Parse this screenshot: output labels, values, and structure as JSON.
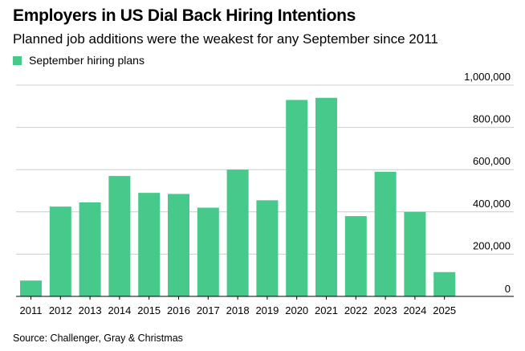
{
  "title": "Employers in US Dial Back Hiring Intentions",
  "subtitle": "Planned job additions were the weakest for any September since 2011",
  "source": "Source: Challenger, Gray & Christmas",
  "colors": {
    "bar": "#46c98a",
    "grid": "#cccccc",
    "baseline": "#000000"
  },
  "chart_data": {
    "type": "bar",
    "categories": [
      "2011",
      "2012",
      "2013",
      "2014",
      "2015",
      "2016",
      "2017",
      "2018",
      "2019",
      "2020",
      "2021",
      "2022",
      "2023",
      "2024",
      "2025"
    ],
    "series": [
      {
        "name": "September hiring plans",
        "values": [
          75000,
          425000,
          445000,
          570000,
          490000,
          485000,
          420000,
          600000,
          455000,
          930000,
          940000,
          380000,
          590000,
          400000,
          115000
        ]
      }
    ],
    "y_ticks": [
      "0",
      "200,000",
      "400,000",
      "600,000",
      "800,000",
      "1,000,000"
    ],
    "y_tick_values": [
      0,
      200000,
      400000,
      600000,
      800000,
      1000000
    ],
    "ylim": [
      0,
      1000000
    ],
    "y_axis_side": "right",
    "grid": true,
    "legend_position": "top-left"
  }
}
